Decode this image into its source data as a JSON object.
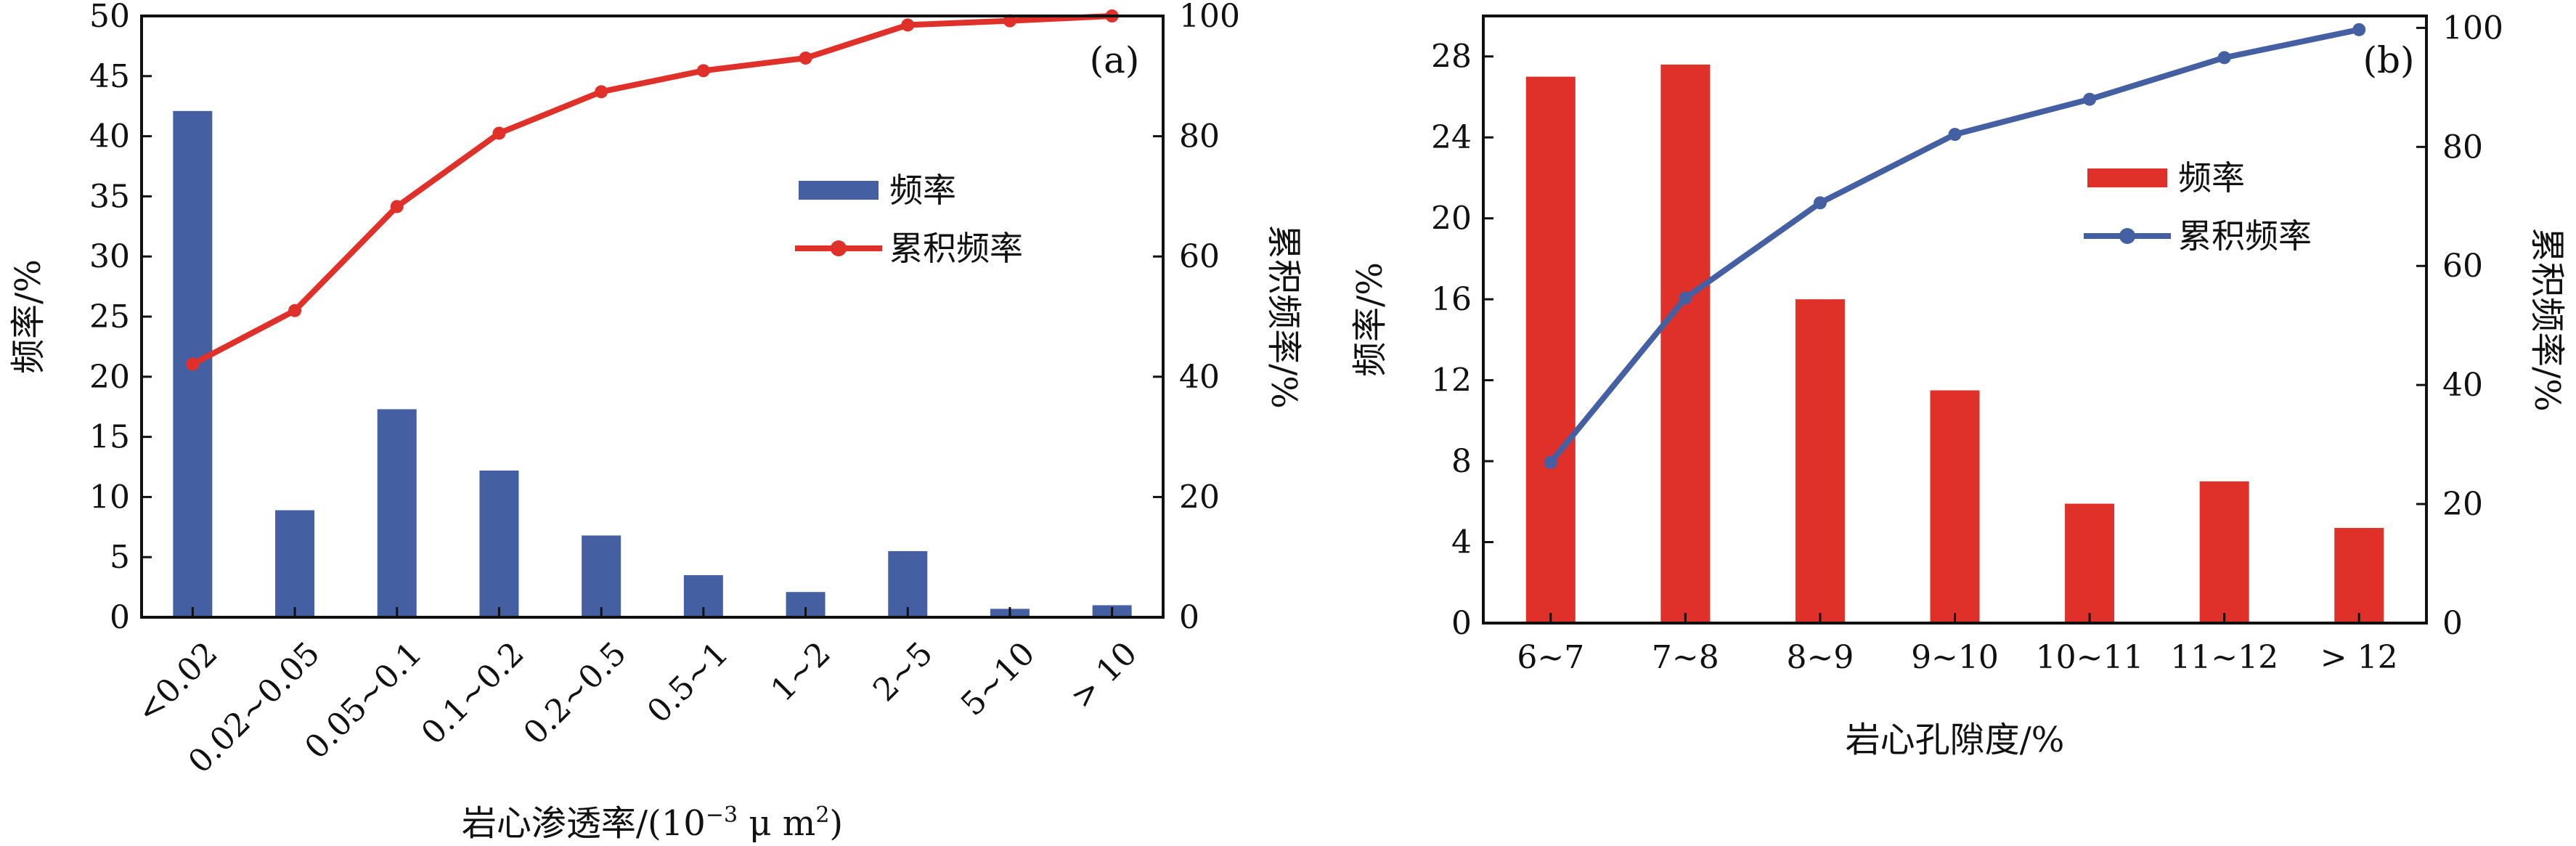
{
  "chart_data": [
    {
      "panel_label": "(a)",
      "type": "bar",
      "categories": [
        "<0.02",
        "0.02~0.05",
        "0.05~0.1",
        "0.1~0.2",
        "0.2~0.5",
        "0.5~1",
        "1~2",
        "2~5",
        "5~10",
        "> 10"
      ],
      "series": [
        {
          "name": "频率",
          "kind": "bar",
          "axis": "left",
          "color": "#4460a3",
          "values": [
            42.1,
            8.9,
            17.3,
            12.2,
            6.8,
            3.5,
            2.1,
            5.5,
            0.7,
            1.0
          ]
        },
        {
          "name": "累积频率",
          "kind": "line",
          "axis": "right",
          "color": "#e0302a",
          "values": [
            42.1,
            51.0,
            68.3,
            80.5,
            87.4,
            90.9,
            93.0,
            98.5,
            99.2,
            100.0
          ]
        }
      ],
      "xlabel": "岩心渗透率/(10",
      "xlabel_sup": "−3",
      "xlabel_tail": " μ m",
      "xlabel_sup2": "2",
      "xlabel_end": ")",
      "ylabel": "频率/%",
      "y2label": "累积频率/%",
      "ylim": [
        0,
        50
      ],
      "yticks": [
        "0",
        "5",
        "10",
        "15",
        "20",
        "25",
        "30",
        "35",
        "40",
        "45",
        "50"
      ],
      "y2lim": [
        0,
        100
      ],
      "y2ticks": [
        "0",
        "20",
        "40",
        "60",
        "80",
        "100"
      ],
      "x_tick_rotation": "rotated 45°",
      "legend_position": "top-right",
      "grid": false
    },
    {
      "panel_label": "(b)",
      "type": "bar",
      "categories": [
        "6~7",
        "7~8",
        "8~9",
        "9~10",
        "10~11",
        "11~12",
        "> 12"
      ],
      "series": [
        {
          "name": "频率",
          "kind": "bar",
          "axis": "left",
          "color": "#e0302a",
          "values": [
            27.0,
            27.6,
            16.0,
            11.5,
            5.9,
            7.0,
            4.7
          ]
        },
        {
          "name": "累积频率",
          "kind": "line",
          "axis": "right",
          "color": "#4460a3",
          "values": [
            27.0,
            54.6,
            70.6,
            82.1,
            88.0,
            95.0,
            99.7
          ]
        }
      ],
      "xlabel": "岩心孔隙度/%",
      "ylabel": "频率/%",
      "y2label": "累积频率/%",
      "ylim": [
        0,
        30
      ],
      "yticks": [
        "0",
        "4",
        "8",
        "12",
        "16",
        "20",
        "24",
        "28"
      ],
      "y2lim": [
        0,
        102
      ],
      "y2ticks": [
        "0",
        "20",
        "40",
        "60",
        "80",
        "100"
      ],
      "legend_position": "top-right",
      "grid": false
    }
  ]
}
